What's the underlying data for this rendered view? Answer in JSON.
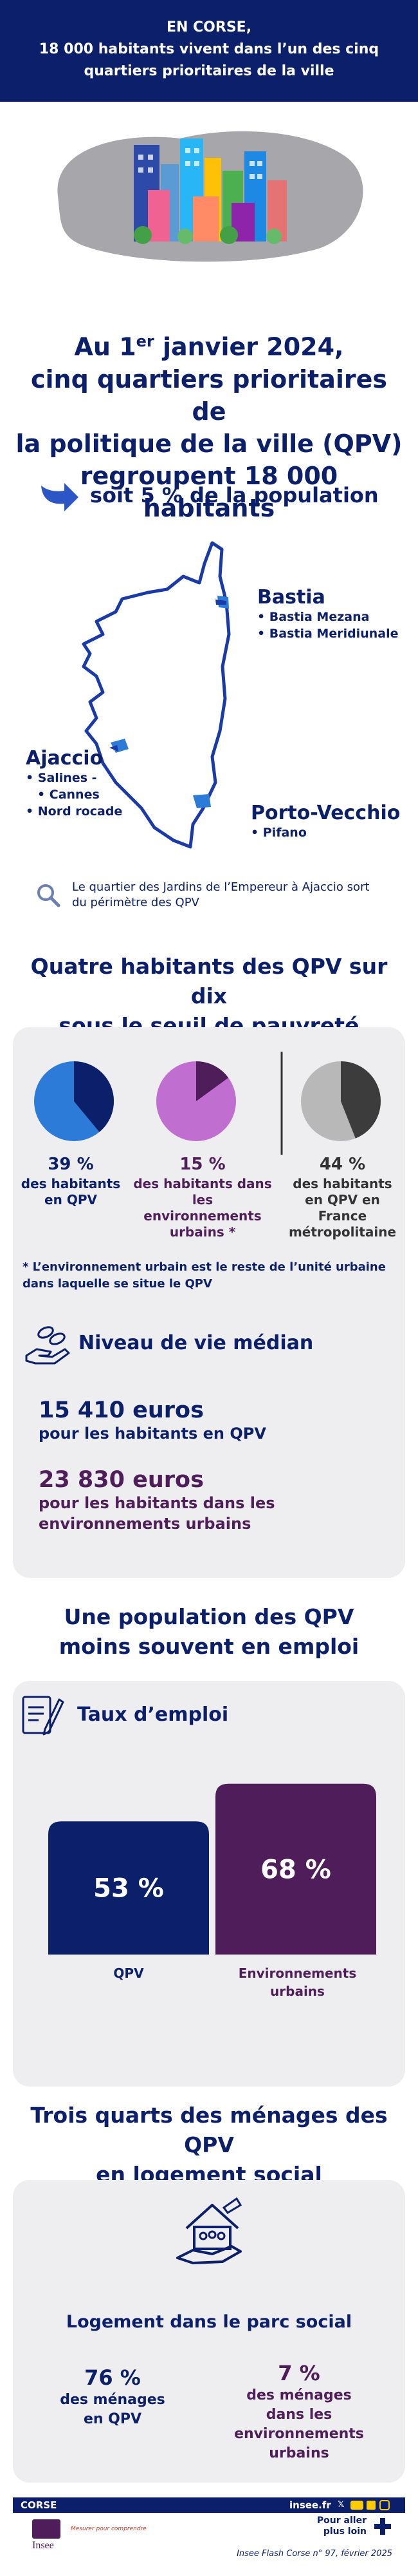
{
  "header": {
    "lines": [
      "EN CORSE,",
      "18 000 habitants vivent dans l’un des cinq",
      "quartiers prioritaires de la ville"
    ]
  },
  "hero": {
    "line1_prefix": "Au 1",
    "line1_sup": "er",
    "line1_suffix": " janvier 2024,",
    "line2": "cinq quartiers prioritaires de",
    "line3": "la politique de la ville (QPV)",
    "line4": "regroupent 18 000 habitants",
    "share": "soit 5 % de la population"
  },
  "map": {
    "bastia": {
      "name": "Bastia",
      "quartiers": [
        "Bastia Mezana",
        "Bastia Meridiunale"
      ]
    },
    "ajaccio": {
      "name": "Ajaccio",
      "quartiers": [
        "Salines -",
        "Cannes",
        "Nord rocade"
      ]
    },
    "porto": {
      "name": "Porto-Vecchio",
      "quartiers": [
        "Pifano"
      ]
    },
    "note_line1": "Le quartier des Jardins de l’Empereur à Ajaccio sort",
    "note_line2": "du périmètre des QPV"
  },
  "poverty": {
    "title_line1": "Quatre habitants des QPV sur dix",
    "title_line2": "sous le seuil de pauvreté",
    "pies": [
      {
        "pct": "39 %",
        "label_lines": [
          "des habitants",
          "en QPV"
        ],
        "share": 0.39,
        "base": "#2c7bd9",
        "slice": "#0b1f6b"
      },
      {
        "pct": "15 %",
        "label_lines": [
          "des habitants dans",
          "les environnements",
          "urbains *"
        ],
        "share": 0.15,
        "base": "#c06fd1",
        "slice": "#4f1d5a"
      },
      {
        "pct": "44 %",
        "label_lines": [
          "des habitants",
          "en QPV en France",
          "métropolitaine"
        ],
        "share": 0.44,
        "base": "#b8b8b8",
        "slice": "#3c3c3c"
      }
    ],
    "footnote_line1": "* L’environnement urbain est le reste de l’unité urbaine",
    "footnote_line2": "dans laquelle se situe le QPV",
    "income_title": "Niveau de vie médian",
    "income_qpv_value": "15 410 euros",
    "income_qpv_desc": "pour les habitants en QPV",
    "income_env_value": "23 830 euros",
    "income_env_desc_line1": "pour les habitants dans les",
    "income_env_desc_line2": "environnements urbains"
  },
  "employment": {
    "title_line1": "Une population des QPV",
    "title_line2": "moins souvent en emploi",
    "subtitle": "Taux d’emploi",
    "chart_data": {
      "type": "bar",
      "categories": [
        "QPV",
        "Environnements urbains"
      ],
      "values": [
        53,
        68
      ],
      "value_labels": [
        "53 %",
        "68 %"
      ],
      "label_lines": [
        [
          "QPV"
        ],
        [
          "Environnements",
          "urbains"
        ]
      ],
      "colors": [
        "#0b1f6b",
        "#4f1d5a"
      ],
      "title": "Taux d’emploi"
    }
  },
  "housing": {
    "title_line1": "Trois quarts des ménages des QPV",
    "title_line2": "en logement social",
    "subtitle": "Logement dans le parc social",
    "qpv_pct": "76 %",
    "qpv_desc_lines": [
      "des ménages",
      "en QPV"
    ],
    "env_pct": "7 %",
    "env_desc_lines": [
      "des ménages",
      "dans les",
      "environnements",
      "urbains"
    ]
  },
  "footer": {
    "region": "CORSE",
    "site": "insee.fr",
    "more_line1": "Pour aller",
    "more_line2": "plus loin",
    "brand": "Insee",
    "tagline": "Mesurer pour comprendre",
    "publication": "Insee Flash Corse n° 97, février 2025"
  }
}
